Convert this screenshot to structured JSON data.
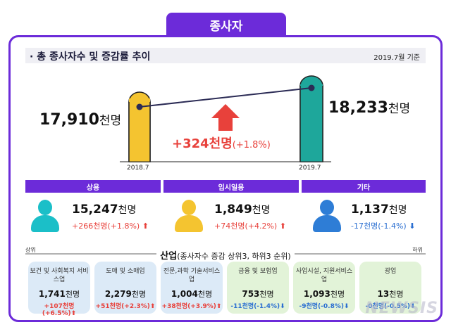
{
  "header": {
    "tab_title": "종사자"
  },
  "section": {
    "title": "· 총 종사자수 및 증감률 추이",
    "basis": "2019.7월 기준"
  },
  "trend": {
    "left": {
      "value": "17,910",
      "unit": "천명",
      "year": "2018.7"
    },
    "right": {
      "value": "18,233",
      "unit": "천명",
      "year": "2019.7"
    },
    "delta": {
      "value": "+324천명",
      "pct": "(+1.8%)"
    }
  },
  "categories": [
    {
      "label": "상용",
      "value": "15,247",
      "unit": "천명",
      "change": "+266천명(+1.8%)",
      "direction": "up",
      "color": "#1bbfc8"
    },
    {
      "label": "임시일용",
      "value": "1,849",
      "unit": "천명",
      "change": "+74천명(+4.2%)",
      "direction": "up",
      "color": "#f4c430"
    },
    {
      "label": "기타",
      "value": "1,137",
      "unit": "천명",
      "change": "-17천명(-1.4%)",
      "direction": "down",
      "color": "#2e7dd6"
    }
  ],
  "industry": {
    "title": "산업",
    "subtitle": "(종사자수 증감 상위3, 하위3 순위)",
    "top_label": "상위",
    "bottom_label": "하위",
    "cards": [
      {
        "name": "보건 및 사회복지 서비스업",
        "value": "1,741",
        "unit": "천명",
        "change": "+107천명(+6.5%)",
        "direction": "up",
        "bg": "#dceaf7"
      },
      {
        "name": "도매 및 소매업",
        "value": "2,279",
        "unit": "천명",
        "change": "+51천명(+2.3%)",
        "direction": "up",
        "bg": "#dceaf7"
      },
      {
        "name": "전문,과학 기술서비스업",
        "value": "1,004",
        "unit": "천명",
        "change": "+38천명(+3.9%)",
        "direction": "up",
        "bg": "#dceaf7"
      },
      {
        "name": "금융 및 보험업",
        "value": "753",
        "unit": "천명",
        "change": "-11천명(-1.4%)",
        "direction": "down",
        "bg": "#e2f3d8"
      },
      {
        "name": "사업시설, 지원서비스업",
        "value": "1,093",
        "unit": "천명",
        "change": "-9천명(-0.8%)",
        "direction": "down",
        "bg": "#e2f3d8"
      },
      {
        "name": "광업",
        "value": "13",
        "unit": "천명",
        "change": "-0천명(-0.5%)",
        "direction": "down",
        "bg": "#e2f3d8"
      }
    ]
  },
  "watermark": "NEWSIS",
  "colors": {
    "accent": "#6c2bd9",
    "up": "#e8413b",
    "down": "#2b6fd1"
  }
}
